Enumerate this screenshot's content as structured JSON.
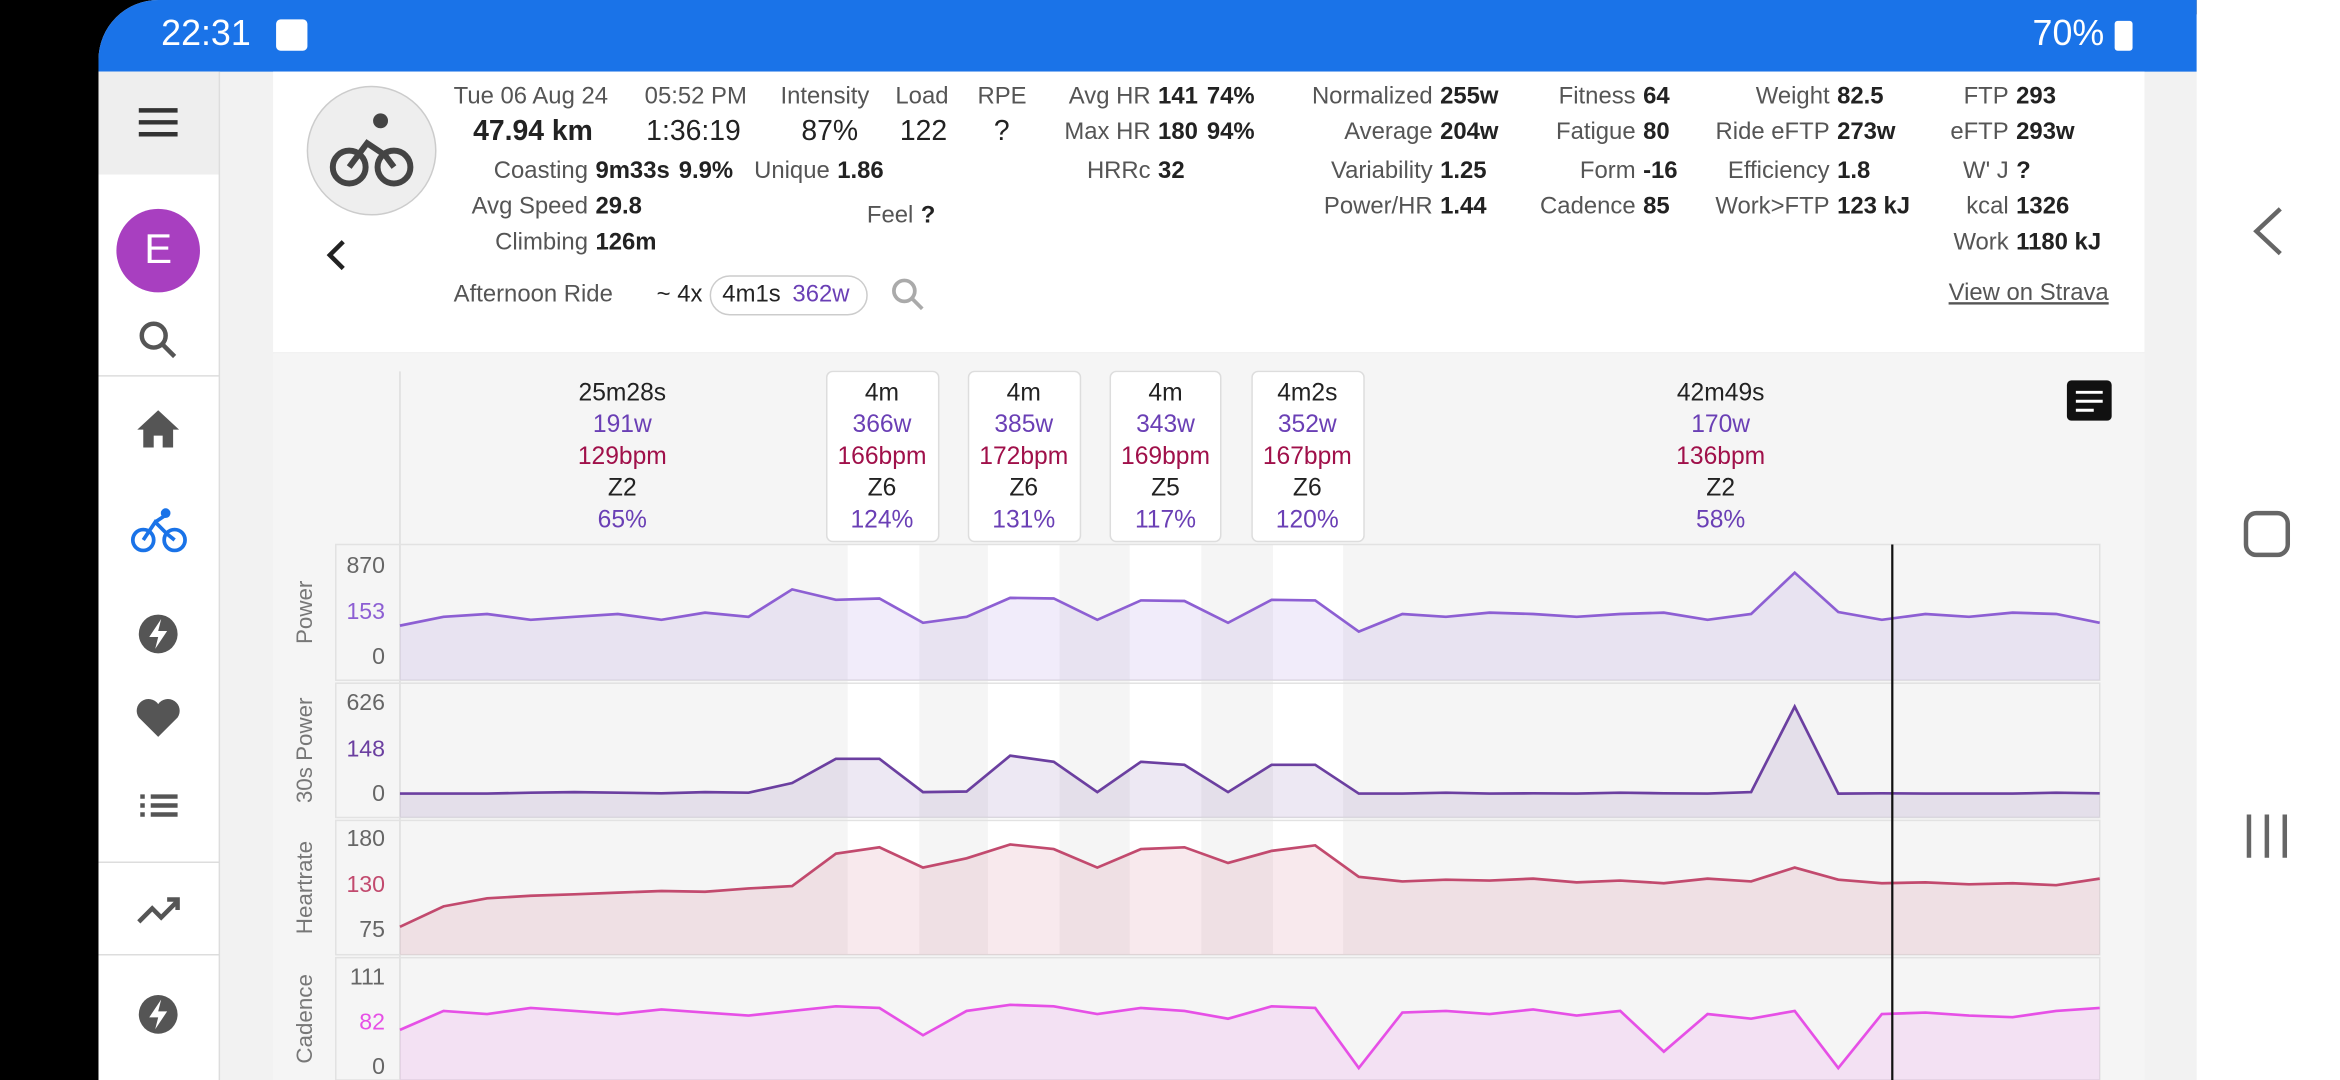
{
  "status": {
    "time": "22:31",
    "battery": "70%"
  },
  "sidebar": {
    "avatar": "E"
  },
  "summary": {
    "date": "Tue 06 Aug 24",
    "time": "05:52 PM",
    "distance": "47.94 km",
    "duration": "1:36:19"
  },
  "headline": [
    {
      "label": "Intensity",
      "value": "87%"
    },
    {
      "label": "Load",
      "value": "122"
    },
    {
      "label": "RPE",
      "value": "?"
    }
  ],
  "stat_columns": [
    [
      {
        "label": "Coasting",
        "value": "9m33s",
        "extra": "9.9%"
      },
      {
        "label": "Avg Speed",
        "value": "29.8"
      },
      {
        "label": "Climbing",
        "value": "126m"
      }
    ],
    [
      {
        "label": "Unique",
        "value": "1.86"
      }
    ],
    [
      {
        "label": "Feel",
        "value": "?"
      }
    ],
    [
      {
        "label": "Avg HR",
        "value": "141",
        "extra": "74%"
      },
      {
        "label": "Max HR",
        "value": "180",
        "extra": "94%"
      },
      {
        "label": "HRRc",
        "value": "32"
      }
    ],
    [
      {
        "label": "Normalized",
        "value": "255w"
      },
      {
        "label": "Average",
        "value": "204w"
      },
      {
        "label": "Variability",
        "value": "1.25"
      },
      {
        "label": "Power/HR",
        "value": "1.44"
      }
    ],
    [
      {
        "label": "Fitness",
        "value": "64"
      },
      {
        "label": "Fatigue",
        "value": "80"
      },
      {
        "label": "Form",
        "value": "-16"
      },
      {
        "label": "Cadence",
        "value": "85"
      }
    ],
    [
      {
        "label": "Weight",
        "value": "82.5"
      },
      {
        "label": "Ride eFTP",
        "value": "273w"
      },
      {
        "label": "Efficiency",
        "value": "1.8"
      },
      {
        "label": "Work>FTP",
        "value": "123 kJ"
      }
    ],
    [
      {
        "label": "FTP",
        "value": "293"
      },
      {
        "label": "eFTP",
        "value": "293w"
      },
      {
        "label": "W' J",
        "value": "?"
      },
      {
        "label": "kcal",
        "value": "1326"
      },
      {
        "label": "Work",
        "value": "1180 kJ"
      }
    ]
  ],
  "ride": {
    "name": "Afternoon Ride",
    "repeat": "~ 4x",
    "interval_duration": "4m1s",
    "interval_power": "362w",
    "link": "View on Strava"
  },
  "intervals": [
    {
      "duration": "25m28s",
      "power": "191w",
      "hr": "129bpm",
      "zone": "Z2",
      "intensity": "65%"
    },
    {
      "duration": "4m",
      "power": "366w",
      "hr": "166bpm",
      "zone": "Z6",
      "intensity": "124%"
    },
    {
      "duration": "4m",
      "power": "385w",
      "hr": "172bpm",
      "zone": "Z6",
      "intensity": "131%"
    },
    {
      "duration": "4m",
      "power": "343w",
      "hr": "169bpm",
      "zone": "Z5",
      "intensity": "117%"
    },
    {
      "duration": "4m2s",
      "power": "352w",
      "hr": "167bpm",
      "zone": "Z6",
      "intensity": "120%"
    },
    {
      "duration": "42m49s",
      "power": "170w",
      "hr": "136bpm",
      "zone": "Z2",
      "intensity": "58%"
    }
  ],
  "charts": [
    {
      "type": "line",
      "label": "Power",
      "color": "#8d5fd3",
      "yticks": [
        870,
        153,
        0
      ],
      "values": [
        110,
        140,
        150,
        130,
        140,
        150,
        130,
        160,
        140,
        520,
        360,
        380,
        120,
        140,
        390,
        380,
        130,
        350,
        340,
        120,
        360,
        350,
        90,
        150,
        140,
        160,
        150,
        140,
        150,
        160,
        130,
        150,
        780,
        170,
        130,
        150,
        140,
        160,
        150,
        120
      ]
    },
    {
      "type": "line",
      "label": "30s Power",
      "color": "#6b3fa0",
      "yticks": [
        626,
        148,
        0
      ],
      "values": [
        5,
        5,
        5,
        8,
        10,
        8,
        6,
        10,
        8,
        40,
        120,
        120,
        10,
        12,
        130,
        110,
        10,
        110,
        100,
        10,
        100,
        100,
        5,
        5,
        8,
        5,
        6,
        5,
        8,
        6,
        5,
        10,
        600,
        5,
        6,
        5,
        5,
        5,
        8,
        6
      ]
    },
    {
      "type": "line",
      "label": "Heartrate",
      "color": "#c24a6e",
      "yticks": [
        180,
        130,
        75
      ],
      "values": [
        80,
        105,
        115,
        118,
        120,
        122,
        124,
        123,
        127,
        130,
        165,
        172,
        150,
        160,
        175,
        170,
        150,
        170,
        172,
        155,
        168,
        174,
        140,
        135,
        137,
        136,
        138,
        134,
        136,
        133,
        138,
        135,
        150,
        137,
        133,
        134,
        132,
        133,
        131,
        138
      ]
    },
    {
      "type": "line",
      "label": "Cadence",
      "color": "#e650e6",
      "yticks": [
        111,
        82,
        0
      ],
      "values": [
        70,
        90,
        88,
        92,
        90,
        88,
        91,
        89,
        87,
        90,
        93,
        92,
        60,
        90,
        94,
        93,
        88,
        92,
        90,
        85,
        93,
        92,
        0,
        89,
        90,
        88,
        91,
        87,
        90,
        30,
        88,
        85,
        90,
        0,
        88,
        89,
        87,
        86,
        90,
        92
      ]
    }
  ]
}
